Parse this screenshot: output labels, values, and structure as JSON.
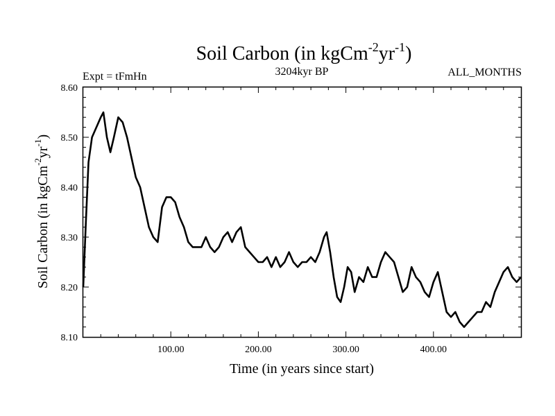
{
  "chart_data": {
    "type": "line",
    "title": "Soil Carbon (in kgCm",
    "title_sup1": "-2",
    "title_mid": "yr",
    "title_sup2": "-1",
    "title_end": ")",
    "subtitle_left": "Expt = tFmHn",
    "subtitle_center": "3204kyr BP",
    "subtitle_right": "ALL_MONTHS",
    "xlabel": "Time (in years since start)",
    "ylabel": "Soil Carbon (in kgCm",
    "ylabel_sup1": "-2",
    "ylabel_mid": "yr",
    "ylabel_sup2": "-1",
    "ylabel_end": ")",
    "xlim": [
      0,
      500
    ],
    "ylim": [
      8.1,
      8.6
    ],
    "x_ticks": [
      100,
      200,
      300,
      400
    ],
    "x_tick_labels": [
      "100.00",
      "200.00",
      "300.00",
      "400.00"
    ],
    "y_ticks": [
      8.1,
      8.2,
      8.3,
      8.4,
      8.5,
      8.6
    ],
    "y_tick_labels": [
      "8.10",
      "8.20",
      "8.30",
      "8.40",
      "8.50",
      "8.60"
    ],
    "grid": false,
    "line_color": "#000000",
    "series": [
      {
        "name": "Soil Carbon",
        "x": [
          0,
          3,
          6,
          10,
          15,
          20,
          23,
          27,
          31,
          35,
          40,
          45,
          50,
          55,
          60,
          65,
          70,
          75,
          80,
          85,
          90,
          95,
          100,
          105,
          110,
          115,
          120,
          125,
          130,
          135,
          140,
          145,
          150,
          155,
          160,
          165,
          170,
          175,
          180,
          185,
          190,
          195,
          200,
          205,
          210,
          215,
          220,
          225,
          230,
          235,
          240,
          245,
          250,
          255,
          260,
          265,
          270,
          275,
          278,
          282,
          286,
          290,
          294,
          298,
          302,
          306,
          310,
          315,
          320,
          325,
          330,
          335,
          340,
          345,
          350,
          355,
          360,
          365,
          370,
          375,
          380,
          385,
          390,
          395,
          400,
          405,
          410,
          415,
          420,
          425,
          430,
          435,
          440,
          445,
          450,
          455,
          460,
          465,
          470,
          475,
          480,
          485,
          490,
          495,
          500
        ],
        "values": [
          8.2,
          8.33,
          8.45,
          8.5,
          8.52,
          8.54,
          8.55,
          8.5,
          8.47,
          8.5,
          8.54,
          8.53,
          8.5,
          8.46,
          8.42,
          8.4,
          8.36,
          8.32,
          8.3,
          8.29,
          8.36,
          8.38,
          8.38,
          8.37,
          8.34,
          8.32,
          8.29,
          8.28,
          8.28,
          8.28,
          8.3,
          8.28,
          8.27,
          8.28,
          8.3,
          8.31,
          8.29,
          8.31,
          8.32,
          8.28,
          8.27,
          8.26,
          8.25,
          8.25,
          8.26,
          8.24,
          8.26,
          8.24,
          8.25,
          8.27,
          8.25,
          8.24,
          8.25,
          8.25,
          8.26,
          8.25,
          8.27,
          8.3,
          8.31,
          8.27,
          8.22,
          8.18,
          8.17,
          8.2,
          8.24,
          8.23,
          8.19,
          8.22,
          8.21,
          8.24,
          8.22,
          8.22,
          8.25,
          8.27,
          8.26,
          8.25,
          8.22,
          8.19,
          8.2,
          8.24,
          8.22,
          8.21,
          8.19,
          8.18,
          8.21,
          8.23,
          8.19,
          8.15,
          8.14,
          8.15,
          8.13,
          8.12,
          8.13,
          8.14,
          8.15,
          8.15,
          8.17,
          8.16,
          8.19,
          8.21,
          8.23,
          8.24,
          8.22,
          8.21,
          8.22
        ]
      }
    ]
  }
}
